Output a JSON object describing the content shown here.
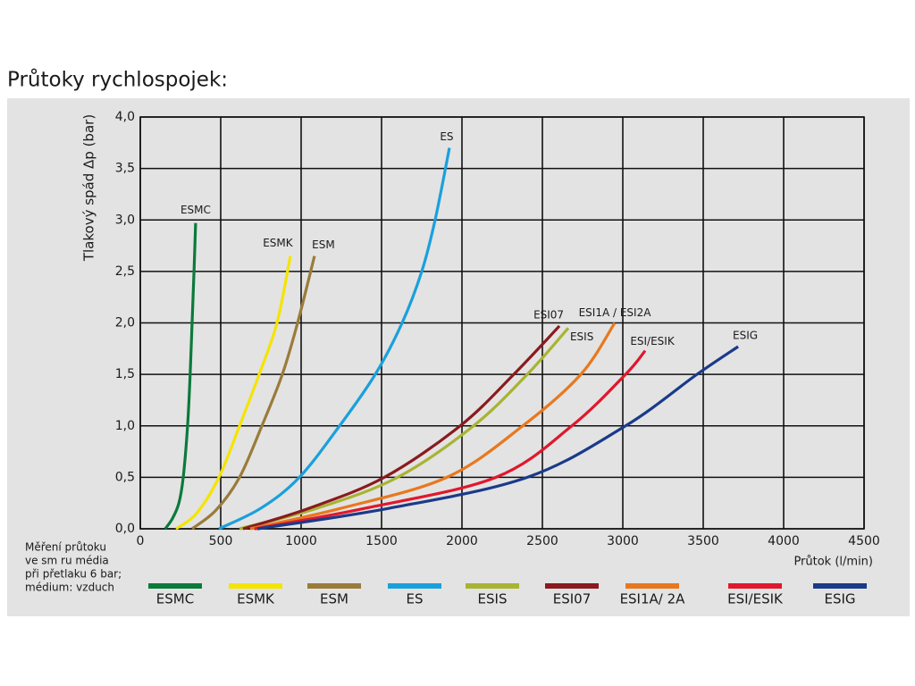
{
  "chart_data": {
    "type": "line",
    "title": "Průtoky rychlospojek:",
    "y_label": "Tlakový spád Δp (bar)",
    "x_label": "Průtok (l/min)",
    "note": [
      "Měření průtoku",
      "ve sm ru média",
      "při přetlaku 6 bar;",
      "médium: vzduch"
    ],
    "xlim": [
      0,
      4500
    ],
    "xticks": [
      0,
      500,
      1000,
      1500,
      2000,
      2500,
      3000,
      3500,
      4000,
      4500
    ],
    "ylim": [
      0,
      4
    ],
    "yticks": [
      {
        "value": 0,
        "label": "0,0"
      },
      {
        "value": 0.5,
        "label": "0,5"
      },
      {
        "value": 1,
        "label": "1,0"
      },
      {
        "value": 1.5,
        "label": "1,5"
      },
      {
        "value": 2,
        "label": "2,0"
      },
      {
        "value": 2.5,
        "label": "2,5"
      },
      {
        "value": 3,
        "label": "3,0"
      },
      {
        "value": 3.5,
        "label": "3,5"
      },
      {
        "value": 4,
        "label": "4,0"
      }
    ],
    "grid": true,
    "series": [
      {
        "name": "ESMC",
        "label": "ESMC",
        "color": "#0b7a3b",
        "x": [
          155,
          200,
          240,
          267,
          294,
          310,
          322,
          334,
          344
        ],
        "values": [
          0,
          0.1,
          0.25,
          0.5,
          1.0,
          1.5,
          2.0,
          2.5,
          2.97
        ]
      },
      {
        "name": "ESMK",
        "label": "ESMK",
        "color": "#f4e400",
        "x": [
          222,
          350,
          489,
          617,
          739,
          850,
          933
        ],
        "values": [
          0,
          0.15,
          0.5,
          1.0,
          1.5,
          2.0,
          2.65
        ]
      },
      {
        "name": "ESM",
        "label": "ESM",
        "color": "#9a7b3a",
        "x": [
          322,
          470,
          617,
          756,
          883,
          978,
          1083
        ],
        "values": [
          0,
          0.18,
          0.5,
          1.0,
          1.5,
          2.0,
          2.65
        ]
      },
      {
        "name": "ES",
        "label": "ES",
        "color": "#1aa0dc",
        "x": [
          489,
          750,
          989,
          1239,
          1461,
          1628,
          1750,
          1833,
          1922
        ],
        "values": [
          0,
          0.2,
          0.5,
          1.0,
          1.5,
          2.0,
          2.5,
          3.0,
          3.7
        ]
      },
      {
        "name": "ESIS",
        "label": "ESIS",
        "color": "#a8b432",
        "x": [
          617,
          1100,
          1600,
          2072,
          2406,
          2661
        ],
        "values": [
          0,
          0.2,
          0.5,
          1.0,
          1.5,
          1.95
        ]
      },
      {
        "name": "ESI07",
        "label": "ESI07",
        "color": "#8a1a1e",
        "x": [
          639,
          1050,
          1517,
          1989,
          2322,
          2606
        ],
        "values": [
          0,
          0.2,
          0.5,
          1.0,
          1.5,
          1.97
        ]
      },
      {
        "name": "ESI1A/ 2A",
        "label": "ESI1A / ESI2A",
        "color": "#e8781e",
        "x": [
          683,
          1250,
          1906,
          2378,
          2739,
          2950
        ],
        "values": [
          0,
          0.2,
          0.5,
          1.0,
          1.5,
          2.0
        ]
      },
      {
        "name": "ESI/ESIK",
        "label": "ESI/ESIK",
        "color": "#e0182c",
        "x": [
          711,
          1400,
          2211,
          2683,
          3017,
          3139
        ],
        "values": [
          0,
          0.2,
          0.5,
          1.0,
          1.5,
          1.73
        ]
      },
      {
        "name": "ESIG",
        "label": "ESIG",
        "color": "#1a3a8a",
        "x": [
          728,
          1550,
          2406,
          3017,
          3461,
          3717
        ],
        "values": [
          0,
          0.2,
          0.5,
          1.0,
          1.5,
          1.77
        ]
      }
    ]
  }
}
